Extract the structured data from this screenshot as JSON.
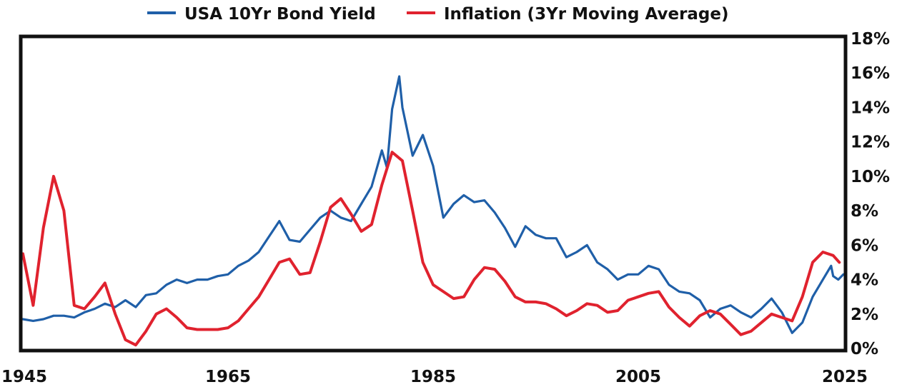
{
  "chart_data": {
    "type": "line",
    "title": "",
    "xlabel": "",
    "ylabel": "",
    "xlim": [
      1945,
      2025
    ],
    "ylim": [
      0,
      18
    ],
    "x_ticks": [
      "1945",
      "1965",
      "1985",
      "2005",
      "2025"
    ],
    "y_ticks": [
      "0%",
      "2%",
      "4%",
      "6%",
      "8%",
      "10%",
      "12%",
      "14%",
      "16%",
      "18%"
    ],
    "y_axis_side": "right",
    "legend_position": "top-center",
    "grid": false,
    "series": [
      {
        "name": "USA 10Yr Bond Yield",
        "color": "#1f5fa8",
        "points": [
          [
            1945,
            1.7
          ],
          [
            1946,
            1.6
          ],
          [
            1947,
            1.7
          ],
          [
            1948,
            1.9
          ],
          [
            1949,
            1.9
          ],
          [
            1950,
            1.8
          ],
          [
            1951,
            2.1
          ],
          [
            1952,
            2.3
          ],
          [
            1953,
            2.6
          ],
          [
            1954,
            2.4
          ],
          [
            1955,
            2.8
          ],
          [
            1956,
            2.4
          ],
          [
            1957,
            3.1
          ],
          [
            1958,
            3.2
          ],
          [
            1959,
            3.7
          ],
          [
            1960,
            4.0
          ],
          [
            1961,
            3.8
          ],
          [
            1962,
            4.0
          ],
          [
            1963,
            4.0
          ],
          [
            1964,
            4.2
          ],
          [
            1965,
            4.3
          ],
          [
            1966,
            4.8
          ],
          [
            1967,
            5.1
          ],
          [
            1968,
            5.6
          ],
          [
            1969,
            6.5
          ],
          [
            1970,
            7.4
          ],
          [
            1971,
            6.3
          ],
          [
            1972,
            6.2
          ],
          [
            1973,
            6.9
          ],
          [
            1974,
            7.6
          ],
          [
            1975,
            8.0
          ],
          [
            1976,
            7.6
          ],
          [
            1977,
            7.4
          ],
          [
            1978,
            8.4
          ],
          [
            1979,
            9.4
          ],
          [
            1980,
            11.5
          ],
          [
            1980.5,
            10.5
          ],
          [
            1981,
            13.9
          ],
          [
            1981.7,
            15.8
          ],
          [
            1982,
            14.0
          ],
          [
            1983,
            11.2
          ],
          [
            1984,
            12.4
          ],
          [
            1985,
            10.6
          ],
          [
            1986,
            7.6
          ],
          [
            1987,
            8.4
          ],
          [
            1988,
            8.9
          ],
          [
            1989,
            8.5
          ],
          [
            1990,
            8.6
          ],
          [
            1991,
            7.9
          ],
          [
            1992,
            7.0
          ],
          [
            1993,
            5.9
          ],
          [
            1994,
            7.1
          ],
          [
            1995,
            6.6
          ],
          [
            1996,
            6.4
          ],
          [
            1997,
            6.4
          ],
          [
            1998,
            5.3
          ],
          [
            1999,
            5.6
          ],
          [
            2000,
            6.0
          ],
          [
            2001,
            5.0
          ],
          [
            2002,
            4.6
          ],
          [
            2003,
            4.0
          ],
          [
            2004,
            4.3
          ],
          [
            2005,
            4.3
          ],
          [
            2006,
            4.8
          ],
          [
            2007,
            4.6
          ],
          [
            2008,
            3.7
          ],
          [
            2009,
            3.3
          ],
          [
            2010,
            3.2
          ],
          [
            2011,
            2.8
          ],
          [
            2012,
            1.8
          ],
          [
            2013,
            2.3
          ],
          [
            2014,
            2.5
          ],
          [
            2015,
            2.1
          ],
          [
            2016,
            1.8
          ],
          [
            2017,
            2.3
          ],
          [
            2018,
            2.9
          ],
          [
            2019,
            2.1
          ],
          [
            2020,
            0.9
          ],
          [
            2021,
            1.5
          ],
          [
            2022,
            3.0
          ],
          [
            2023,
            4.0
          ],
          [
            2023.8,
            4.8
          ],
          [
            2024,
            4.2
          ],
          [
            2024.5,
            4.0
          ],
          [
            2025,
            4.3
          ]
        ]
      },
      {
        "name": "Inflation (3Yr Moving Average)",
        "color": "#e0222e",
        "points": [
          [
            1945,
            5.5
          ],
          [
            1946,
            2.5
          ],
          [
            1947,
            7.0
          ],
          [
            1948,
            10.0
          ],
          [
            1949,
            8.0
          ],
          [
            1950,
            2.5
          ],
          [
            1951,
            2.3
          ],
          [
            1952,
            3.0
          ],
          [
            1953,
            3.8
          ],
          [
            1954,
            2.0
          ],
          [
            1955,
            0.5
          ],
          [
            1956,
            0.2
          ],
          [
            1957,
            1.0
          ],
          [
            1958,
            2.0
          ],
          [
            1959,
            2.3
          ],
          [
            1960,
            1.8
          ],
          [
            1961,
            1.2
          ],
          [
            1962,
            1.1
          ],
          [
            1963,
            1.1
          ],
          [
            1964,
            1.1
          ],
          [
            1965,
            1.2
          ],
          [
            1966,
            1.6
          ],
          [
            1967,
            2.3
          ],
          [
            1968,
            3.0
          ],
          [
            1969,
            4.0
          ],
          [
            1970,
            5.0
          ],
          [
            1971,
            5.2
          ],
          [
            1972,
            4.3
          ],
          [
            1973,
            4.4
          ],
          [
            1974,
            6.2
          ],
          [
            1975,
            8.2
          ],
          [
            1976,
            8.7
          ],
          [
            1977,
            7.8
          ],
          [
            1978,
            6.8
          ],
          [
            1979,
            7.2
          ],
          [
            1980,
            9.5
          ],
          [
            1981,
            11.4
          ],
          [
            1982,
            10.9
          ],
          [
            1983,
            8.0
          ],
          [
            1984,
            5.0
          ],
          [
            1985,
            3.7
          ],
          [
            1986,
            3.3
          ],
          [
            1987,
            2.9
          ],
          [
            1988,
            3.0
          ],
          [
            1989,
            4.0
          ],
          [
            1990,
            4.7
          ],
          [
            1991,
            4.6
          ],
          [
            1992,
            3.9
          ],
          [
            1993,
            3.0
          ],
          [
            1994,
            2.7
          ],
          [
            1995,
            2.7
          ],
          [
            1996,
            2.6
          ],
          [
            1997,
            2.3
          ],
          [
            1998,
            1.9
          ],
          [
            1999,
            2.2
          ],
          [
            2000,
            2.6
          ],
          [
            2001,
            2.5
          ],
          [
            2002,
            2.1
          ],
          [
            2003,
            2.2
          ],
          [
            2004,
            2.8
          ],
          [
            2005,
            3.0
          ],
          [
            2006,
            3.2
          ],
          [
            2007,
            3.3
          ],
          [
            2008,
            2.4
          ],
          [
            2009,
            1.8
          ],
          [
            2010,
            1.3
          ],
          [
            2011,
            1.9
          ],
          [
            2012,
            2.2
          ],
          [
            2013,
            2.0
          ],
          [
            2014,
            1.4
          ],
          [
            2015,
            0.8
          ],
          [
            2016,
            1.0
          ],
          [
            2017,
            1.5
          ],
          [
            2018,
            2.0
          ],
          [
            2019,
            1.8
          ],
          [
            2020,
            1.6
          ],
          [
            2021,
            3.0
          ],
          [
            2022,
            5.0
          ],
          [
            2023,
            5.6
          ],
          [
            2024,
            5.4
          ],
          [
            2024.6,
            5.0
          ]
        ]
      }
    ]
  }
}
